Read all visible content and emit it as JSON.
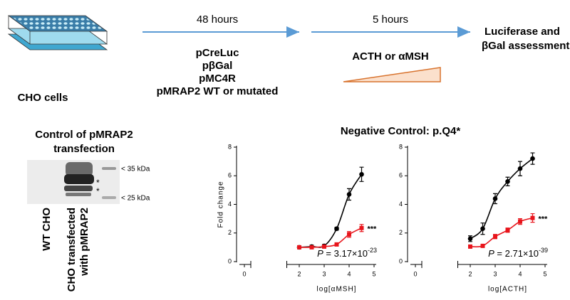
{
  "workflow": {
    "cells_label": "CHO cells",
    "step1_time": "48 hours",
    "plasmids": [
      "pCreLuc",
      "pβGal",
      "pMC4R",
      "pMRAP2 WT or mutated"
    ],
    "step2_time": "5 hours",
    "stimulus": "ACTH or αMSH",
    "readout": [
      "Luciferase and",
      "βGal assessment"
    ]
  },
  "blot": {
    "title": [
      "Control of pMRAP2",
      "transfection"
    ],
    "markers": [
      "< 35 kDa",
      "< 25 kDa"
    ],
    "band_marks": [
      "*",
      "*"
    ],
    "lane_labels": [
      "WT CHO",
      "CHO transfected",
      "with pMRAP2"
    ]
  },
  "figure_title": "Negative Control: p.Q4*",
  "chart_data": [
    {
      "type": "line",
      "x_label": "log[αMSH]",
      "y_label": "Fold change",
      "x": [
        2,
        2.5,
        3,
        3.5,
        4,
        4.5
      ],
      "series": [
        {
          "color": "#000000",
          "values": [
            1.0,
            1.05,
            1.1,
            2.3,
            4.7,
            6.1
          ],
          "errors": [
            0.1,
            0.1,
            0.1,
            0.1,
            0.4,
            0.5
          ]
        },
        {
          "color": "#e8141b",
          "values": [
            1.0,
            1.0,
            1.05,
            1.2,
            1.9,
            2.35
          ],
          "errors": [
            0.1,
            0.1,
            0.1,
            0.1,
            0.2,
            0.25
          ]
        }
      ],
      "xlim": [
        0,
        5
      ],
      "xticks": [
        0,
        2,
        3,
        4,
        5
      ],
      "ylim": [
        0,
        8
      ],
      "yticks": [
        0,
        2,
        4,
        6,
        8
      ],
      "annotation": "***",
      "p_value": {
        "symbol": "P",
        "text": " = 3.17×10",
        "exponent": "-23"
      }
    },
    {
      "type": "line",
      "x_label": "log[ACTH]",
      "x": [
        2,
        2.5,
        3,
        3.5,
        4,
        4.5
      ],
      "series": [
        {
          "color": "#000000",
          "values": [
            1.6,
            2.3,
            4.4,
            5.6,
            6.5,
            7.2
          ],
          "errors": [
            0.2,
            0.4,
            0.35,
            0.3,
            0.5,
            0.4
          ]
        },
        {
          "color": "#e8141b",
          "values": [
            1.05,
            1.1,
            1.75,
            2.2,
            2.8,
            3.05
          ],
          "errors": [
            0.1,
            0.1,
            0.15,
            0.15,
            0.2,
            0.3
          ]
        }
      ],
      "xlim": [
        0,
        5
      ],
      "xticks": [
        0,
        2,
        3,
        4,
        5
      ],
      "ylim": [
        0,
        8
      ],
      "yticks": [
        0,
        2,
        4,
        6,
        8
      ],
      "annotation": "***",
      "p_value": {
        "symbol": "P",
        "text": " = 2.71×10",
        "exponent": "-39"
      }
    }
  ]
}
